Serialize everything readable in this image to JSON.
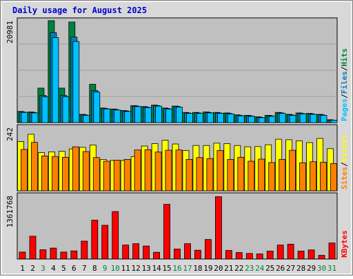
{
  "chart_data": {
    "type": "bar",
    "title": "Daily usage for August 2025",
    "categories": [
      "1",
      "2",
      "3",
      "4",
      "5",
      "6",
      "7",
      "8",
      "9",
      "10",
      "11",
      "12",
      "13",
      "14",
      "15",
      "16",
      "17",
      "18",
      "19",
      "20",
      "21",
      "22",
      "23",
      "24",
      "25",
      "26",
      "27",
      "28",
      "29",
      "30",
      "31"
    ],
    "weekend_days": [
      "3",
      "9",
      "10",
      "16",
      "17",
      "23",
      "24",
      "30",
      "31"
    ],
    "colors": {
      "title": "#0000cc",
      "hits": "#008040",
      "files": "#0080c0",
      "pages": "#00c0ff",
      "visits": "#ffff00",
      "sites": "#ff8000",
      "kbytes": "#ff0000",
      "panel": "#c0c0c0",
      "outer": "#d8d8d8",
      "weekday_label": "#000000",
      "weekend_label": "#008040"
    },
    "panels": [
      {
        "id": "top",
        "max_label": "20981",
        "ymax": 20981,
        "legend": [
          {
            "text": "Pages",
            "color": "#00c0ff"
          },
          {
            "text": "/",
            "color": "#000000"
          },
          {
            "text": "Files",
            "color": "#0080c0"
          },
          {
            "text": "/",
            "color": "#000000"
          },
          {
            "text": "Hits",
            "color": "#008040"
          }
        ],
        "series": [
          {
            "name": "Hits",
            "color": "#008040",
            "values": [
              2300,
              2200,
              7100,
              20981,
              7100,
              20700,
              1700,
              7900,
              3000,
              2800,
              2500,
              3500,
              3300,
              3600,
              3000,
              3400,
              2100,
              2100,
              2200,
              2100,
              2000,
              1600,
              1500,
              1200,
              1500,
              2100,
              1700,
              2000,
              1900,
              1700,
              600
            ]
          },
          {
            "name": "Files",
            "color": "#0080c0",
            "values": [
              2200,
              2100,
              5600,
              18500,
              5600,
              17600,
              1600,
              6600,
              2900,
              2700,
              2400,
              3400,
              3200,
              3500,
              2900,
              3300,
              2000,
              2000,
              2100,
              2000,
              1900,
              1500,
              1400,
              1100,
              1400,
              2000,
              1600,
              1900,
              1800,
              1600,
              500
            ]
          },
          {
            "name": "Pages",
            "color": "#00c0ff",
            "values": [
              2100,
              2000,
              5300,
              17500,
              5300,
              16700,
              1500,
              6300,
              2800,
              2600,
              2300,
              3300,
              3100,
              3400,
              2800,
              3200,
              1900,
              1900,
              2000,
              1900,
              1800,
              1400,
              1300,
              1000,
              1300,
              1900,
              1500,
              1800,
              1700,
              1500,
              500
            ]
          }
        ]
      },
      {
        "id": "mid",
        "max_label": "242",
        "ymax": 242,
        "legend": [
          {
            "text": "Sites",
            "color": "#ff8000"
          },
          {
            "text": "/",
            "color": "#000000"
          },
          {
            "text": "Visits",
            "color": "#ffff00"
          }
        ],
        "series": [
          {
            "name": "Visits",
            "color": "#ffff00",
            "values": [
              188,
              216,
              146,
              149,
              151,
              160,
              166,
              175,
              120,
              116,
              116,
              131,
              171,
              180,
              193,
              179,
              154,
              173,
              173,
              182,
              180,
              173,
              168,
              169,
              176,
              197,
              195,
              191,
              184,
              200,
              161
            ]
          },
          {
            "name": "Sites",
            "color": "#ff8000",
            "values": [
              158,
              185,
              133,
              131,
              128,
              168,
              150,
              127,
              113,
              117,
              120,
              156,
              157,
              148,
              155,
              156,
              120,
              127,
              123,
              154,
              120,
              128,
              113,
              121,
              108,
              120,
              155,
              107,
              111,
              109,
              104
            ]
          }
        ]
      },
      {
        "id": "bot",
        "max_label": "1361768",
        "ymax": 1361768,
        "legend": [
          {
            "text": "KBytes",
            "color": "#ff0000"
          }
        ],
        "series": [
          {
            "name": "KBytes",
            "color": "#ff0000",
            "values": [
              150000,
              490000,
              200000,
              235000,
              150000,
              175000,
              385000,
              835000,
              725000,
              1020000,
              300000,
              330000,
              280000,
              145000,
              1175000,
              215000,
              330000,
              190000,
              420000,
              1340000,
              185000,
              140000,
              120000,
              110000,
              170000,
              300000,
              320000,
              170000,
              195000,
              80000,
              345000
            ]
          }
        ]
      }
    ]
  }
}
